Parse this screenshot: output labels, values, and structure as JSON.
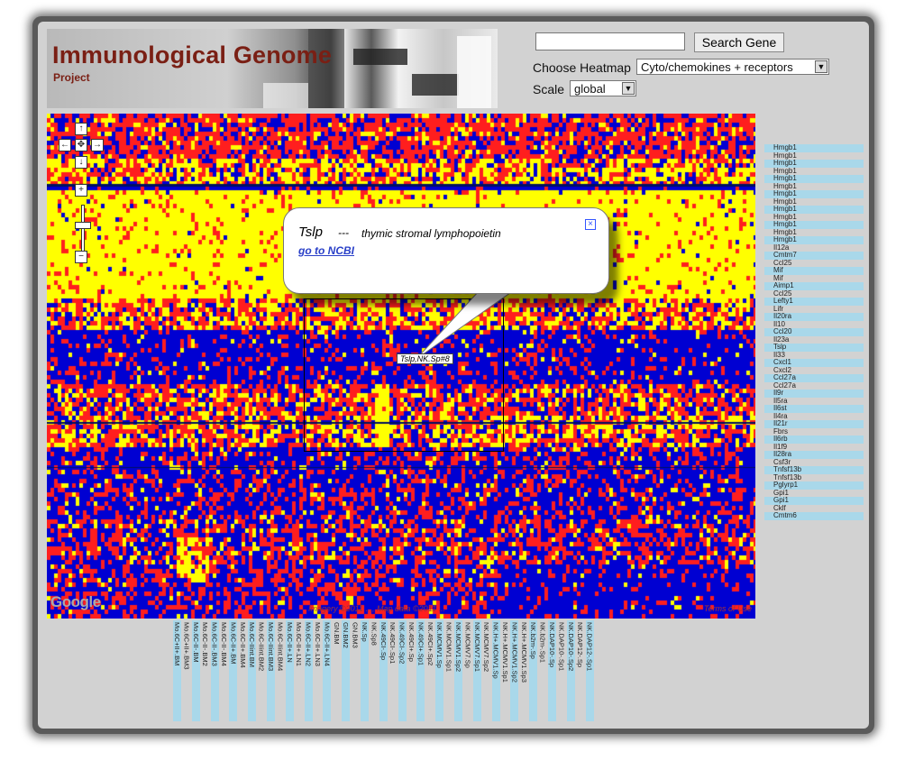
{
  "header": {
    "title": "Immunological Genome",
    "subtitle": "Project"
  },
  "search": {
    "input_value": "",
    "button_label": "Search Gene"
  },
  "heatmap_select": {
    "label": "Choose Heatmap",
    "value": "Cyto/chemokines + receptors"
  },
  "scale_select": {
    "label": "Scale",
    "value": "global"
  },
  "map_controls": {
    "pan_up": "↑",
    "pan_left": "←",
    "pan_center": "✥",
    "pan_right": "→",
    "pan_down": "↓",
    "zoom_in": "+",
    "zoom_out": "−"
  },
  "popup": {
    "gene": "Tslp",
    "separator": "---",
    "description": "thymic stromal lymphopoietin",
    "link": "go to NCBI",
    "close": "×"
  },
  "hover_label": "Tslp,NK.Sp#8",
  "map_footer": {
    "google_logo": "Google",
    "attribution": "Imagery ©2011 ..., Map data ©2011 ...",
    "terms": "Terms of Use"
  },
  "genes": [
    "Hmgb1",
    "Hmgb1",
    "Hmgb1",
    "Hmgb1",
    "Hmgb1",
    "Hmgb1",
    "Hmgb1",
    "Hmgb1",
    "Hmgb1",
    "Hmgb1",
    "Hmgb1",
    "Hmgb1",
    "Hmgb1",
    "Il12a",
    "Cmtm7",
    "Ccl25",
    "Mif",
    "Mif",
    "Aimp1",
    "Ccl25",
    "Lefty1",
    "Lifr",
    "Il20ra",
    "Il10",
    "Ccl20",
    "Il23a",
    "Tslp",
    "Il33",
    "Cxcl1",
    "Cxcl2",
    "Ccl27a",
    "Ccl27a",
    "Il9r",
    "Il5ra",
    "Il6st",
    "Il4ra",
    "Il21r",
    "Fbrs",
    "Il6rb",
    "Il1f9",
    "Il28ra",
    "Csf3r",
    "Tnfsf13b",
    "Tnfsf13b",
    "Pglyrp1",
    "Gpi1",
    "Gpi1",
    "Cklf",
    "Cmtm6"
  ],
  "samples": [
    "Mo.6C+II+.BM",
    "Mo.6C+II+.BM3",
    "Mo.6C-II-.BM",
    "Mo.6C-II-.BM2",
    "Mo.6C-II-.BM3",
    "Mo.6C-II-.BM4",
    "Mo.6C-II+.BM",
    "Mo.6C-II+.BM4",
    "Mo.6C-IIint.BM",
    "Mo.6C-IIint.BM2",
    "Mo.6C-IIint.BM3",
    "Mo.6C-IIint.BM4",
    "Mo.6C-II+.LN",
    "Mo.6C-II+.LN1",
    "Mo.6C-II+.LN2",
    "Mo.6C-II+.LN3",
    "Mo.6C-II+.LN4",
    "GN.BM",
    "GN.BM2",
    "GN.BM3",
    "NK.Sp",
    "NK.Sp8",
    "NK.49CI-.Sp",
    "NK.49CI-.Sp1",
    "NK.49CI-.Sp2",
    "NK.49CI+.Sp",
    "NK.49CI+.Sp1",
    "NK.49CI+.Sp2",
    "NK.MCMV1.Sp",
    "NK.MCMV1.Sp1",
    "NK.MCMV1.Sp2",
    "NK.MCMV7.Sp",
    "NK.MCMV7.Sp1",
    "NK.MCMV7.Sp2",
    "NK.H+.MCMV1.Sp",
    "NK.H+.MCMV1.Sp1",
    "NK.H+.MCMV1.Sp2",
    "NK.H+.MCMV1.Sp3",
    "NK.b2m-.Sp",
    "NK.b2m-.Sp1",
    "NK.DAP10-.Sp",
    "NK.DAP10-.Sp1",
    "NK.DAP10-.Sp2",
    "NK.DAP12-.Sp",
    "NK.DAP12-.Sp1"
  ],
  "colors": {
    "high": "#ffff00",
    "mid": "#ff1e1e",
    "low": "#0000d2",
    "title": "#7a1f14",
    "stripe": "#a9d8ea"
  }
}
